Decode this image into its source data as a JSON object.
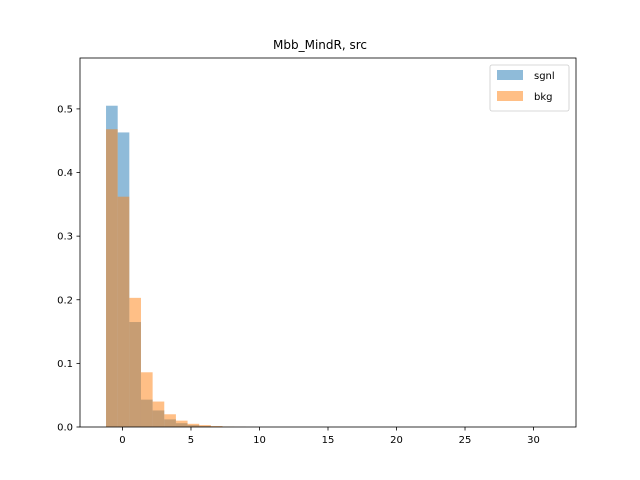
{
  "chart_data": {
    "type": "bar",
    "title": "Mbb_MindR, src",
    "xlabel": "",
    "ylabel": "",
    "xlim": [
      -3.1,
      33.1
    ],
    "ylim": [
      0,
      0.58
    ],
    "x_ticks": [
      0,
      5,
      10,
      15,
      20,
      25,
      30
    ],
    "y_ticks": [
      0.0,
      0.1,
      0.2,
      0.3,
      0.4,
      0.5
    ],
    "legend_position": "top-right",
    "bin_edges": [
      -1.2,
      -0.35,
      0.5,
      1.35,
      2.2,
      3.05,
      3.9,
      4.75,
      5.6,
      6.45,
      7.3,
      8.15,
      9.0
    ],
    "series": [
      {
        "name": "sgnl",
        "color": "#1f77b4",
        "alpha": 0.5,
        "values": [
          0.505,
          0.463,
          0.165,
          0.043,
          0.026,
          0.012,
          0.006,
          0.003,
          0.0015,
          0.0008,
          0.0004,
          0.0002
        ]
      },
      {
        "name": "bkg",
        "color": "#ff7f0e",
        "alpha": 0.5,
        "values": [
          0.468,
          0.362,
          0.203,
          0.086,
          0.04,
          0.02,
          0.01,
          0.005,
          0.003,
          0.0015,
          0.0007,
          0.0003
        ]
      }
    ]
  }
}
